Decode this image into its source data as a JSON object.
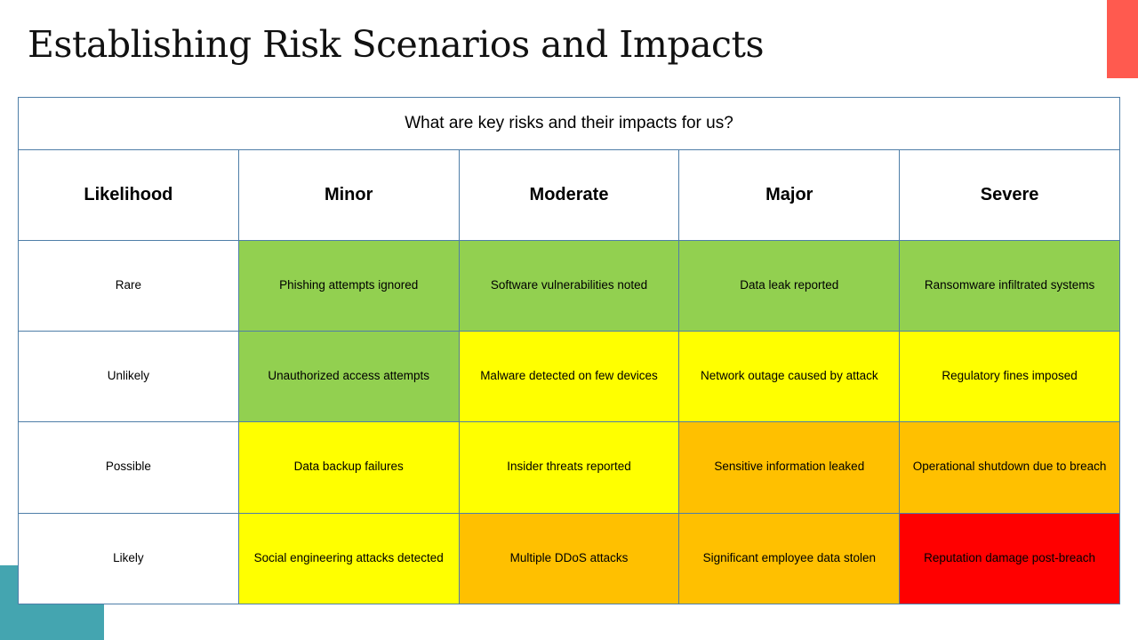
{
  "title": "Establishing Risk Scenarios and Impacts",
  "colors": {
    "accent_top": "#ff5a4f",
    "accent_bottom": "#44a5b0",
    "green": "#92d050",
    "yellow": "#ffff00",
    "orange": "#ffc000",
    "red": "#ff0000"
  },
  "table": {
    "question": "What are key risks and their impacts for us?",
    "headers": [
      "Likelihood",
      "Minor",
      "Moderate",
      "Major",
      "Severe"
    ],
    "rows": [
      {
        "likelihood": "Rare",
        "cells": [
          {
            "text": "Phishing attempts ignored",
            "level": "green"
          },
          {
            "text": "Software vulnerabilities noted",
            "level": "green"
          },
          {
            "text": "Data leak reported",
            "level": "green"
          },
          {
            "text": "Ransomware infiltrated systems",
            "level": "green"
          }
        ]
      },
      {
        "likelihood": "Unlikely",
        "cells": [
          {
            "text": "Unauthorized  access attempts",
            "level": "green"
          },
          {
            "text": "Malware detected on few devices",
            "level": "yellow"
          },
          {
            "text": "Network outage caused by attack",
            "level": "yellow"
          },
          {
            "text": "Regulatory fines imposed",
            "level": "yellow"
          }
        ]
      },
      {
        "likelihood": "Possible",
        "cells": [
          {
            "text": "Data backup failures",
            "level": "yellow"
          },
          {
            "text": "Insider threats reported",
            "level": "yellow"
          },
          {
            "text": "Sensitive information leaked",
            "level": "orange"
          },
          {
            "text": "Operational shutdown due to breach",
            "level": "orange"
          }
        ]
      },
      {
        "likelihood": "Likely",
        "cells": [
          {
            "text": "Social engineering attacks detected",
            "level": "yellow"
          },
          {
            "text": "Multiple DDoS attacks",
            "level": "orange"
          },
          {
            "text": "Significant employee data stolen",
            "level": "orange"
          },
          {
            "text": "Reputation damage post-breach",
            "level": "red"
          }
        ]
      }
    ]
  }
}
